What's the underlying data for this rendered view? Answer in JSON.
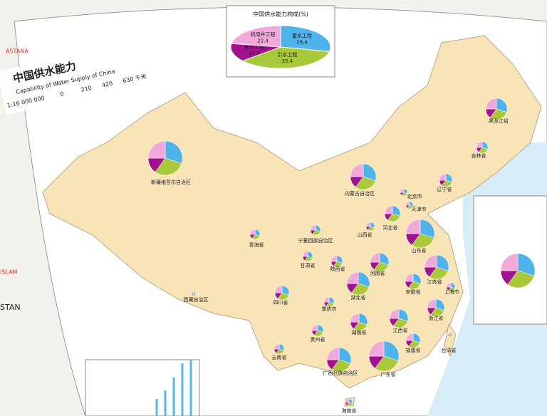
{
  "header": {
    "title": "中国供水能力",
    "subtitle": "Capability of Water Supply of China",
    "scale": "1:16 000 000",
    "scale_ticks": [
      "0",
      "210",
      "420",
      "630 千米"
    ]
  },
  "foreign_labels": [
    "ASTANA",
    "ISLAM",
    "STAN"
  ],
  "chart_data": {
    "type": "pie",
    "title": "中国供水能力构成(%)",
    "categories": [
      "蓄水工程",
      "引水工程",
      "提水工程",
      "机电井工程"
    ],
    "values": [
      28.4,
      35.4,
      13.8,
      22.4
    ],
    "colors": [
      "#4db3ea",
      "#a9c93a",
      "#a3128e",
      "#f1a9d9"
    ]
  },
  "provinces": [
    "新疆维吾尔自治区",
    "内蒙古自治区",
    "黑龙江省",
    "吉林省",
    "辽宁省",
    "北京市",
    "天津市",
    "河北省",
    "山西省",
    "山东省",
    "河南省",
    "江苏省",
    "上海市",
    "安徽省",
    "浙江省",
    "湖北省",
    "湖南省",
    "江西省",
    "福建省",
    "广东省",
    "广西壮族自治区",
    "海南省",
    "四川省",
    "重庆市",
    "贵州省",
    "云南省",
    "西藏自治区",
    "青海省",
    "甘肃省",
    "宁夏回族自治区",
    "陕西省",
    "台湾省"
  ]
}
